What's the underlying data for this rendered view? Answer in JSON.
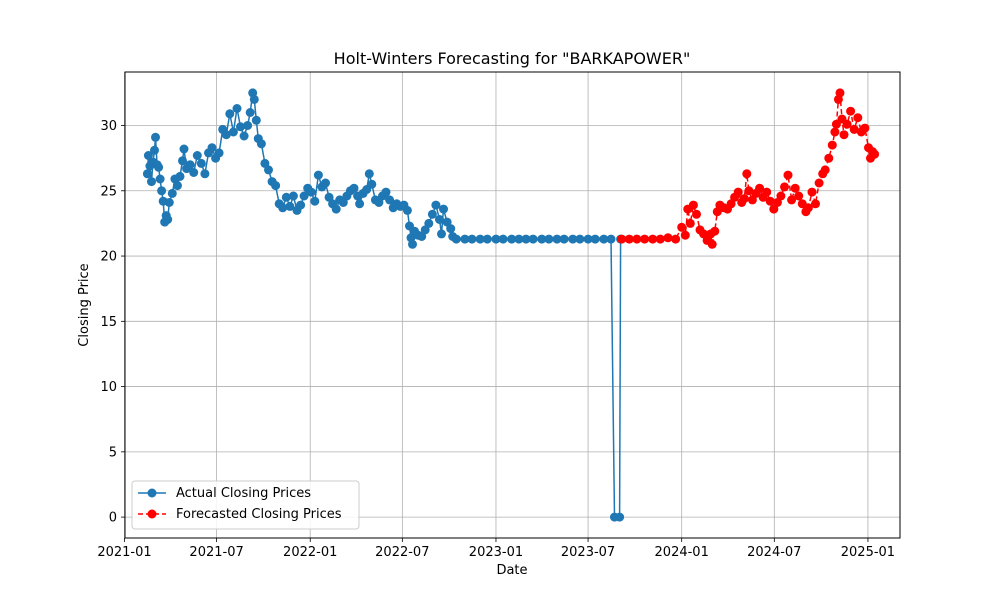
{
  "chart_data": {
    "type": "line",
    "title": "Holt-Winters Forecasting for \"BARKAPOWER\"",
    "xlabel": "Date",
    "ylabel": "Closing Price",
    "ylim": [
      -1.6,
      34.1
    ],
    "xlim": [
      "2021-01-02",
      "2025-03-05"
    ],
    "x_ticks": [
      "2021-01",
      "2021-07",
      "2022-01",
      "2022-07",
      "2023-01",
      "2023-07",
      "2024-01",
      "2024-07",
      "2025-01"
    ],
    "y_ticks": [
      0,
      5,
      10,
      15,
      20,
      25,
      30
    ],
    "grid": true,
    "legend_position": "lower-left",
    "series": [
      {
        "name": "Actual Closing Prices",
        "color": "#1f77b4",
        "line_style": "solid",
        "marker": "circle",
        "points": [
          [
            "2021-02-15",
            26.3
          ],
          [
            "2021-02-17",
            27.7
          ],
          [
            "2021-02-20",
            26.9
          ],
          [
            "2021-02-23",
            25.7
          ],
          [
            "2021-02-26",
            27.2
          ],
          [
            "2021-03-01",
            28.1
          ],
          [
            "2021-03-03",
            29.1
          ],
          [
            "2021-03-06",
            27.0
          ],
          [
            "2021-03-09",
            26.8
          ],
          [
            "2021-03-12",
            25.9
          ],
          [
            "2021-03-15",
            25.0
          ],
          [
            "2021-03-18",
            24.2
          ],
          [
            "2021-03-21",
            22.6
          ],
          [
            "2021-03-24",
            23.1
          ],
          [
            "2021-03-27",
            22.8
          ],
          [
            "2021-03-30",
            24.1
          ],
          [
            "2021-04-05",
            24.8
          ],
          [
            "2021-04-10",
            25.9
          ],
          [
            "2021-04-15",
            25.4
          ],
          [
            "2021-04-20",
            26.1
          ],
          [
            "2021-04-25",
            27.3
          ],
          [
            "2021-04-28",
            28.2
          ],
          [
            "2021-05-03",
            26.7
          ],
          [
            "2021-05-10",
            27.0
          ],
          [
            "2021-05-17",
            26.4
          ],
          [
            "2021-05-24",
            27.7
          ],
          [
            "2021-06-01",
            27.1
          ],
          [
            "2021-06-08",
            26.3
          ],
          [
            "2021-06-15",
            27.9
          ],
          [
            "2021-06-22",
            28.3
          ],
          [
            "2021-06-29",
            27.5
          ],
          [
            "2021-07-06",
            27.9
          ],
          [
            "2021-07-13",
            29.7
          ],
          [
            "2021-07-20",
            29.3
          ],
          [
            "2021-07-27",
            30.9
          ],
          [
            "2021-08-03",
            29.5
          ],
          [
            "2021-08-10",
            31.3
          ],
          [
            "2021-08-17",
            29.9
          ],
          [
            "2021-08-24",
            29.2
          ],
          [
            "2021-08-31",
            30.0
          ],
          [
            "2021-09-05",
            31.0
          ],
          [
            "2021-09-10",
            32.5
          ],
          [
            "2021-09-13",
            32.0
          ],
          [
            "2021-09-17",
            30.4
          ],
          [
            "2021-09-21",
            29.0
          ],
          [
            "2021-09-27",
            28.6
          ],
          [
            "2021-10-04",
            27.1
          ],
          [
            "2021-10-11",
            26.6
          ],
          [
            "2021-10-18",
            25.7
          ],
          [
            "2021-10-25",
            25.4
          ],
          [
            "2021-11-01",
            24.0
          ],
          [
            "2021-11-08",
            23.7
          ],
          [
            "2021-11-15",
            24.5
          ],
          [
            "2021-11-22",
            23.8
          ],
          [
            "2021-11-29",
            24.6
          ],
          [
            "2021-12-06",
            23.5
          ],
          [
            "2021-12-13",
            23.9
          ],
          [
            "2021-12-20",
            24.6
          ],
          [
            "2021-12-27",
            25.2
          ],
          [
            "2022-01-03",
            24.9
          ],
          [
            "2022-01-10",
            24.2
          ],
          [
            "2022-01-17",
            26.2
          ],
          [
            "2022-01-24",
            25.3
          ],
          [
            "2022-01-31",
            25.6
          ],
          [
            "2022-02-07",
            24.5
          ],
          [
            "2022-02-14",
            24.0
          ],
          [
            "2022-02-21",
            23.6
          ],
          [
            "2022-02-28",
            24.3
          ],
          [
            "2022-03-07",
            24.1
          ],
          [
            "2022-03-14",
            24.6
          ],
          [
            "2022-03-21",
            25.0
          ],
          [
            "2022-03-28",
            25.2
          ],
          [
            "2022-04-04",
            24.6
          ],
          [
            "2022-04-08",
            24.0
          ],
          [
            "2022-04-15",
            24.8
          ],
          [
            "2022-04-22",
            25.1
          ],
          [
            "2022-04-27",
            26.3
          ],
          [
            "2022-05-02",
            25.5
          ],
          [
            "2022-05-09",
            24.3
          ],
          [
            "2022-05-16",
            24.1
          ],
          [
            "2022-05-23",
            24.6
          ],
          [
            "2022-05-30",
            24.9
          ],
          [
            "2022-06-06",
            24.3
          ],
          [
            "2022-06-13",
            23.7
          ],
          [
            "2022-06-20",
            24.0
          ],
          [
            "2022-06-27",
            23.8
          ],
          [
            "2022-07-04",
            23.9
          ],
          [
            "2022-07-11",
            23.5
          ],
          [
            "2022-07-15",
            22.3
          ],
          [
            "2022-07-18",
            21.4
          ],
          [
            "2022-07-21",
            20.9
          ],
          [
            "2022-07-25",
            21.9
          ],
          [
            "2022-08-01",
            21.6
          ],
          [
            "2022-08-08",
            21.5
          ],
          [
            "2022-08-15",
            22.0
          ],
          [
            "2022-08-22",
            22.5
          ],
          [
            "2022-08-29",
            23.2
          ],
          [
            "2022-09-05",
            23.9
          ],
          [
            "2022-09-12",
            22.8
          ],
          [
            "2022-09-16",
            21.7
          ],
          [
            "2022-09-20",
            23.6
          ],
          [
            "2022-09-27",
            22.6
          ],
          [
            "2022-10-04",
            22.1
          ],
          [
            "2022-10-08",
            21.5
          ],
          [
            "2022-10-15",
            21.3
          ],
          [
            "2022-11-01",
            21.3
          ],
          [
            "2022-11-15",
            21.3
          ],
          [
            "2022-12-01",
            21.3
          ],
          [
            "2022-12-15",
            21.3
          ],
          [
            "2023-01-01",
            21.3
          ],
          [
            "2023-01-15",
            21.3
          ],
          [
            "2023-02-01",
            21.3
          ],
          [
            "2023-02-15",
            21.3
          ],
          [
            "2023-03-01",
            21.3
          ],
          [
            "2023-03-15",
            21.3
          ],
          [
            "2023-04-01",
            21.3
          ],
          [
            "2023-04-15",
            21.3
          ],
          [
            "2023-05-01",
            21.3
          ],
          [
            "2023-05-15",
            21.3
          ],
          [
            "2023-06-01",
            21.3
          ],
          [
            "2023-06-15",
            21.3
          ],
          [
            "2023-07-01",
            21.3
          ],
          [
            "2023-07-15",
            21.3
          ],
          [
            "2023-08-01",
            21.3
          ],
          [
            "2023-08-15",
            21.3
          ],
          [
            "2023-08-22",
            0.0
          ],
          [
            "2023-09-01",
            0.0
          ],
          [
            "2023-09-03",
            21.3
          ]
        ]
      },
      {
        "name": "Forecasted Closing Prices",
        "color": "#ff0000",
        "line_style": "dashed",
        "marker": "circle",
        "points": [
          [
            "2023-09-05",
            21.3
          ],
          [
            "2023-09-20",
            21.3
          ],
          [
            "2023-10-05",
            21.3
          ],
          [
            "2023-10-20",
            21.3
          ],
          [
            "2023-11-05",
            21.3
          ],
          [
            "2023-11-20",
            21.3
          ],
          [
            "2023-12-05",
            21.4
          ],
          [
            "2023-12-20",
            21.3
          ],
          [
            "2024-01-01",
            22.2
          ],
          [
            "2024-01-08",
            21.6
          ],
          [
            "2024-01-13",
            23.6
          ],
          [
            "2024-01-18",
            22.5
          ],
          [
            "2024-01-24",
            23.9
          ],
          [
            "2024-01-30",
            23.2
          ],
          [
            "2024-02-06",
            22.0
          ],
          [
            "2024-02-13",
            21.7
          ],
          [
            "2024-02-20",
            21.2
          ],
          [
            "2024-02-27",
            21.7
          ],
          [
            "2024-03-01",
            20.9
          ],
          [
            "2024-03-06",
            21.9
          ],
          [
            "2024-03-11",
            23.4
          ],
          [
            "2024-03-16",
            23.9
          ],
          [
            "2024-03-24",
            23.7
          ],
          [
            "2024-03-31",
            23.6
          ],
          [
            "2024-04-07",
            24.0
          ],
          [
            "2024-04-14",
            24.5
          ],
          [
            "2024-04-21",
            24.9
          ],
          [
            "2024-04-28",
            24.1
          ],
          [
            "2024-05-03",
            24.4
          ],
          [
            "2024-05-08",
            26.3
          ],
          [
            "2024-05-12",
            25.0
          ],
          [
            "2024-05-19",
            24.3
          ],
          [
            "2024-05-26",
            24.8
          ],
          [
            "2024-06-02",
            25.2
          ],
          [
            "2024-06-09",
            24.5
          ],
          [
            "2024-06-16",
            24.9
          ],
          [
            "2024-06-23",
            24.2
          ],
          [
            "2024-06-30",
            23.6
          ],
          [
            "2024-07-07",
            24.1
          ],
          [
            "2024-07-14",
            24.6
          ],
          [
            "2024-07-21",
            25.3
          ],
          [
            "2024-07-28",
            26.2
          ],
          [
            "2024-08-04",
            24.3
          ],
          [
            "2024-08-11",
            25.2
          ],
          [
            "2024-08-18",
            24.6
          ],
          [
            "2024-08-25",
            24.0
          ],
          [
            "2024-09-01",
            23.4
          ],
          [
            "2024-09-06",
            23.7
          ],
          [
            "2024-09-13",
            24.9
          ],
          [
            "2024-09-20",
            24.0
          ],
          [
            "2024-09-27",
            25.6
          ],
          [
            "2024-10-04",
            26.3
          ],
          [
            "2024-10-09",
            26.6
          ],
          [
            "2024-10-16",
            27.5
          ],
          [
            "2024-10-23",
            28.5
          ],
          [
            "2024-10-28",
            29.5
          ],
          [
            "2024-10-31",
            30.1
          ],
          [
            "2024-11-04",
            32.0
          ],
          [
            "2024-11-07",
            32.5
          ],
          [
            "2024-11-11",
            30.5
          ],
          [
            "2024-11-15",
            29.3
          ],
          [
            "2024-11-21",
            30.1
          ],
          [
            "2024-11-28",
            31.1
          ],
          [
            "2024-12-05",
            29.7
          ],
          [
            "2024-12-12",
            30.6
          ],
          [
            "2024-12-19",
            29.5
          ],
          [
            "2024-12-26",
            29.8
          ],
          [
            "2025-01-02",
            28.3
          ],
          [
            "2025-01-06",
            27.5
          ],
          [
            "2025-01-10",
            28.0
          ],
          [
            "2025-01-14",
            27.8
          ]
        ]
      }
    ]
  }
}
